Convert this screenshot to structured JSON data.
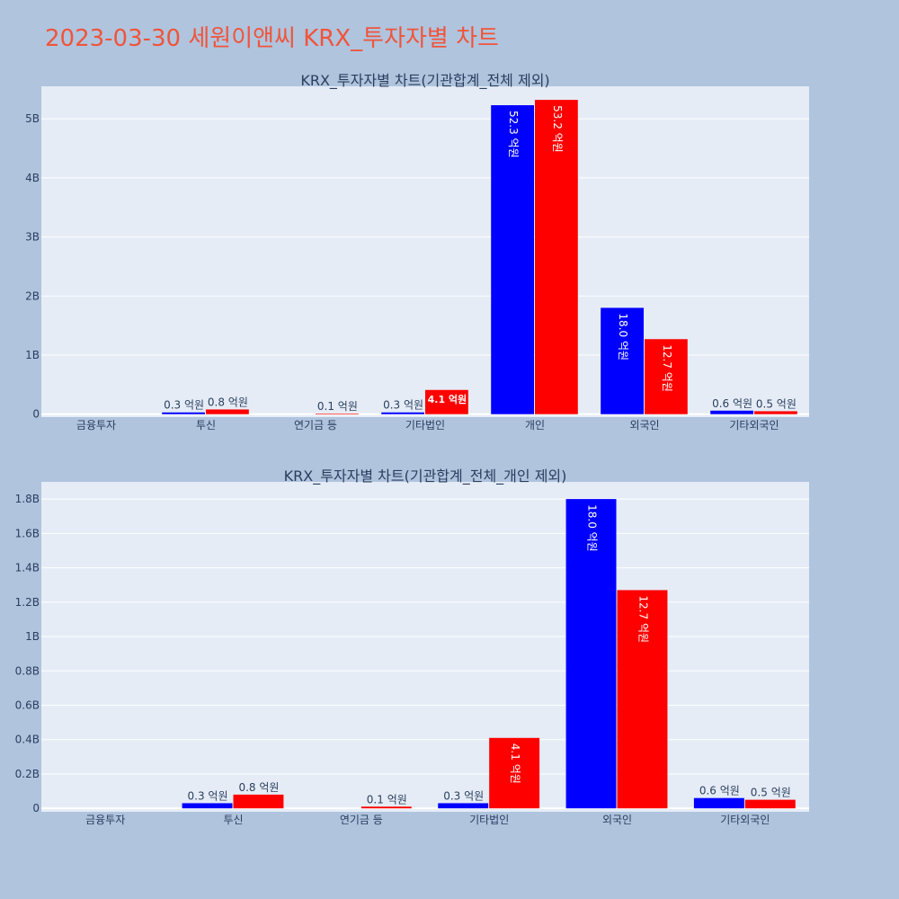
{
  "page": {
    "title": "2023-03-30 세원이앤씨 KRX_투자자별 차트"
  },
  "colors": {
    "background": "#b0c4de",
    "plot_bg": "#e5ecf6",
    "grid": "#ffffff",
    "series_a": "#0000ff",
    "series_b": "#ff0000",
    "title": "#ef553b",
    "text": "#2a3f5f"
  },
  "chart_data": [
    {
      "type": "bar",
      "title": "KRX_투자자별 차트(기관합계_전체 제외)",
      "categories": [
        "금융투자",
        "투신",
        "연기금 등",
        "기타법인",
        "개인",
        "외국인",
        "기타외국인"
      ],
      "series": [
        {
          "color": "#0000ff",
          "values": [
            0,
            0.03,
            0,
            0.03,
            5.23,
            1.8,
            0.06
          ],
          "labels": [
            "",
            "0.3 억원",
            "",
            "0.3 억원",
            "52.3 억원",
            "18.0 억원",
            "0.6 억원"
          ]
        },
        {
          "color": "#ff0000",
          "values": [
            0,
            0.08,
            0.01,
            0.41,
            5.32,
            1.27,
            0.05
          ],
          "labels": [
            "",
            "0.8 억원",
            "0.1 억원",
            "4.1 억원",
            "53.2 억원",
            "12.7 억원",
            "0.5 억원"
          ]
        }
      ],
      "ylim": [
        -0.05,
        5.55
      ],
      "yticks": [
        0,
        1,
        2,
        3,
        4,
        5
      ],
      "ytick_labels": [
        "0",
        "1B",
        "2B",
        "3B",
        "4B",
        "5B"
      ],
      "grid": true
    },
    {
      "type": "bar",
      "title": "KRX_투자자별 차트(기관합계_전체_개인 제외)",
      "categories": [
        "금융투자",
        "투신",
        "연기금 등",
        "기타법인",
        "외국인",
        "기타외국인"
      ],
      "series": [
        {
          "color": "#0000ff",
          "values": [
            0,
            0.03,
            0,
            0.03,
            1.8,
            0.06
          ],
          "labels": [
            "",
            "0.3 억원",
            "",
            "0.3 억원",
            "18.0 억원",
            "0.6 억원"
          ]
        },
        {
          "color": "#ff0000",
          "values": [
            0,
            0.08,
            0.01,
            0.41,
            1.27,
            0.05
          ],
          "labels": [
            "",
            "0.8 억원",
            "0.1 억원",
            "4.1 억원",
            "12.7 억원",
            "0.5 억원"
          ]
        }
      ],
      "ylim": [
        -0.02,
        1.9
      ],
      "yticks": [
        0,
        0.2,
        0.4,
        0.6,
        0.8,
        1.0,
        1.2,
        1.4,
        1.6,
        1.8
      ],
      "ytick_labels": [
        "0",
        "0.2B",
        "0.4B",
        "0.6B",
        "0.8B",
        "1B",
        "1.2B",
        "1.4B",
        "1.6B",
        "1.8B"
      ],
      "grid": true
    }
  ]
}
